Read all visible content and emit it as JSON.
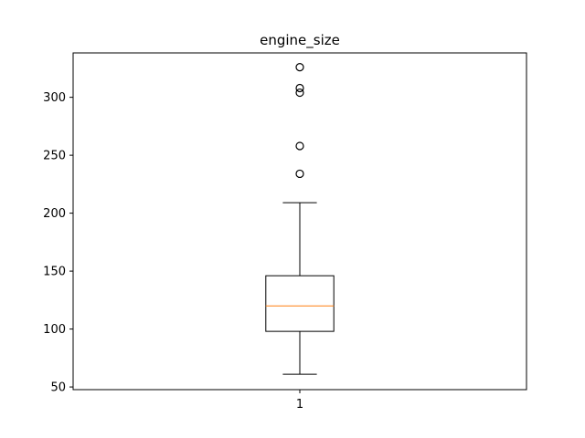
{
  "chart_data": {
    "type": "box",
    "title": "engine_size",
    "xlabel": "",
    "ylabel": "",
    "categories": [
      "1"
    ],
    "ylim": [
      47.7,
      338.3
    ],
    "yticks": [
      50,
      100,
      150,
      200,
      250,
      300
    ],
    "grid": false,
    "boxes": [
      {
        "category": "1",
        "whisker_low": 61,
        "q1": 98,
        "median": 120,
        "q3": 146,
        "whisker_high": 209,
        "outliers": [
          234,
          258,
          304,
          308,
          326
        ]
      }
    ],
    "colors": {
      "box": "#000000",
      "median": "#ff7f0e",
      "whisker": "#000000",
      "outlier": "#000000",
      "axes": "#000000"
    }
  }
}
